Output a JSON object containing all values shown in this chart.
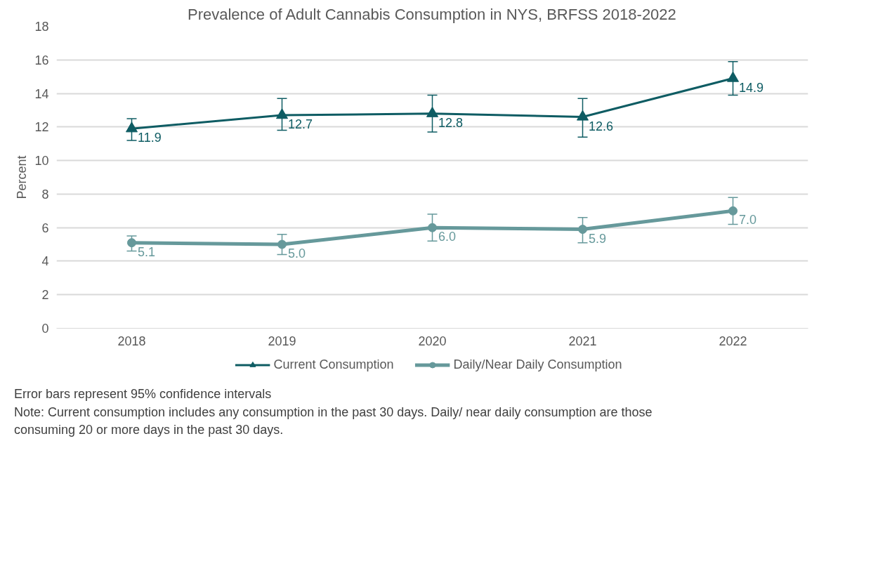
{
  "chart_data": {
    "type": "line",
    "title": "Prevalence of Adult Cannabis Consumption in NYS, BRFSS 2018-2022",
    "ylabel": "Percent",
    "categories": [
      "2018",
      "2019",
      "2020",
      "2021",
      "2022"
    ],
    "series": [
      {
        "name": "Current Consumption",
        "color": "#0e5c63",
        "marker": "triangle",
        "values": [
          11.9,
          12.7,
          12.8,
          12.6,
          14.9
        ],
        "value_labels": [
          "11.9",
          "12.7",
          "12.8",
          "12.6",
          "14.9"
        ],
        "errors": [
          [
            11.2,
            12.5
          ],
          [
            11.8,
            13.7
          ],
          [
            11.7,
            13.9
          ],
          [
            11.4,
            13.7
          ],
          [
            13.9,
            15.9
          ]
        ]
      },
      {
        "name": "Daily/Near Daily Consumption",
        "color": "#66999b",
        "marker": "circle",
        "values": [
          5.1,
          5.0,
          6.0,
          5.9,
          7.0
        ],
        "value_labels": [
          "5.1",
          "5.0",
          "6.0",
          "5.9",
          "7.0"
        ],
        "errors": [
          [
            4.6,
            5.5
          ],
          [
            4.4,
            5.6
          ],
          [
            5.2,
            6.8
          ],
          [
            5.1,
            6.6
          ],
          [
            6.2,
            7.8
          ]
        ]
      }
    ],
    "ylim": [
      0,
      18
    ],
    "yticks": [
      0,
      2,
      4,
      6,
      8,
      10,
      12,
      14,
      16,
      18
    ],
    "grid": "y",
    "legend": "bottom",
    "annotations": [
      "Error bars represent 95% confidence intervals",
      "Note: Current consumption includes any consumption in the past 30 days. Daily/ near daily consumption are those consuming 20 or more days in the past 30 days."
    ]
  }
}
